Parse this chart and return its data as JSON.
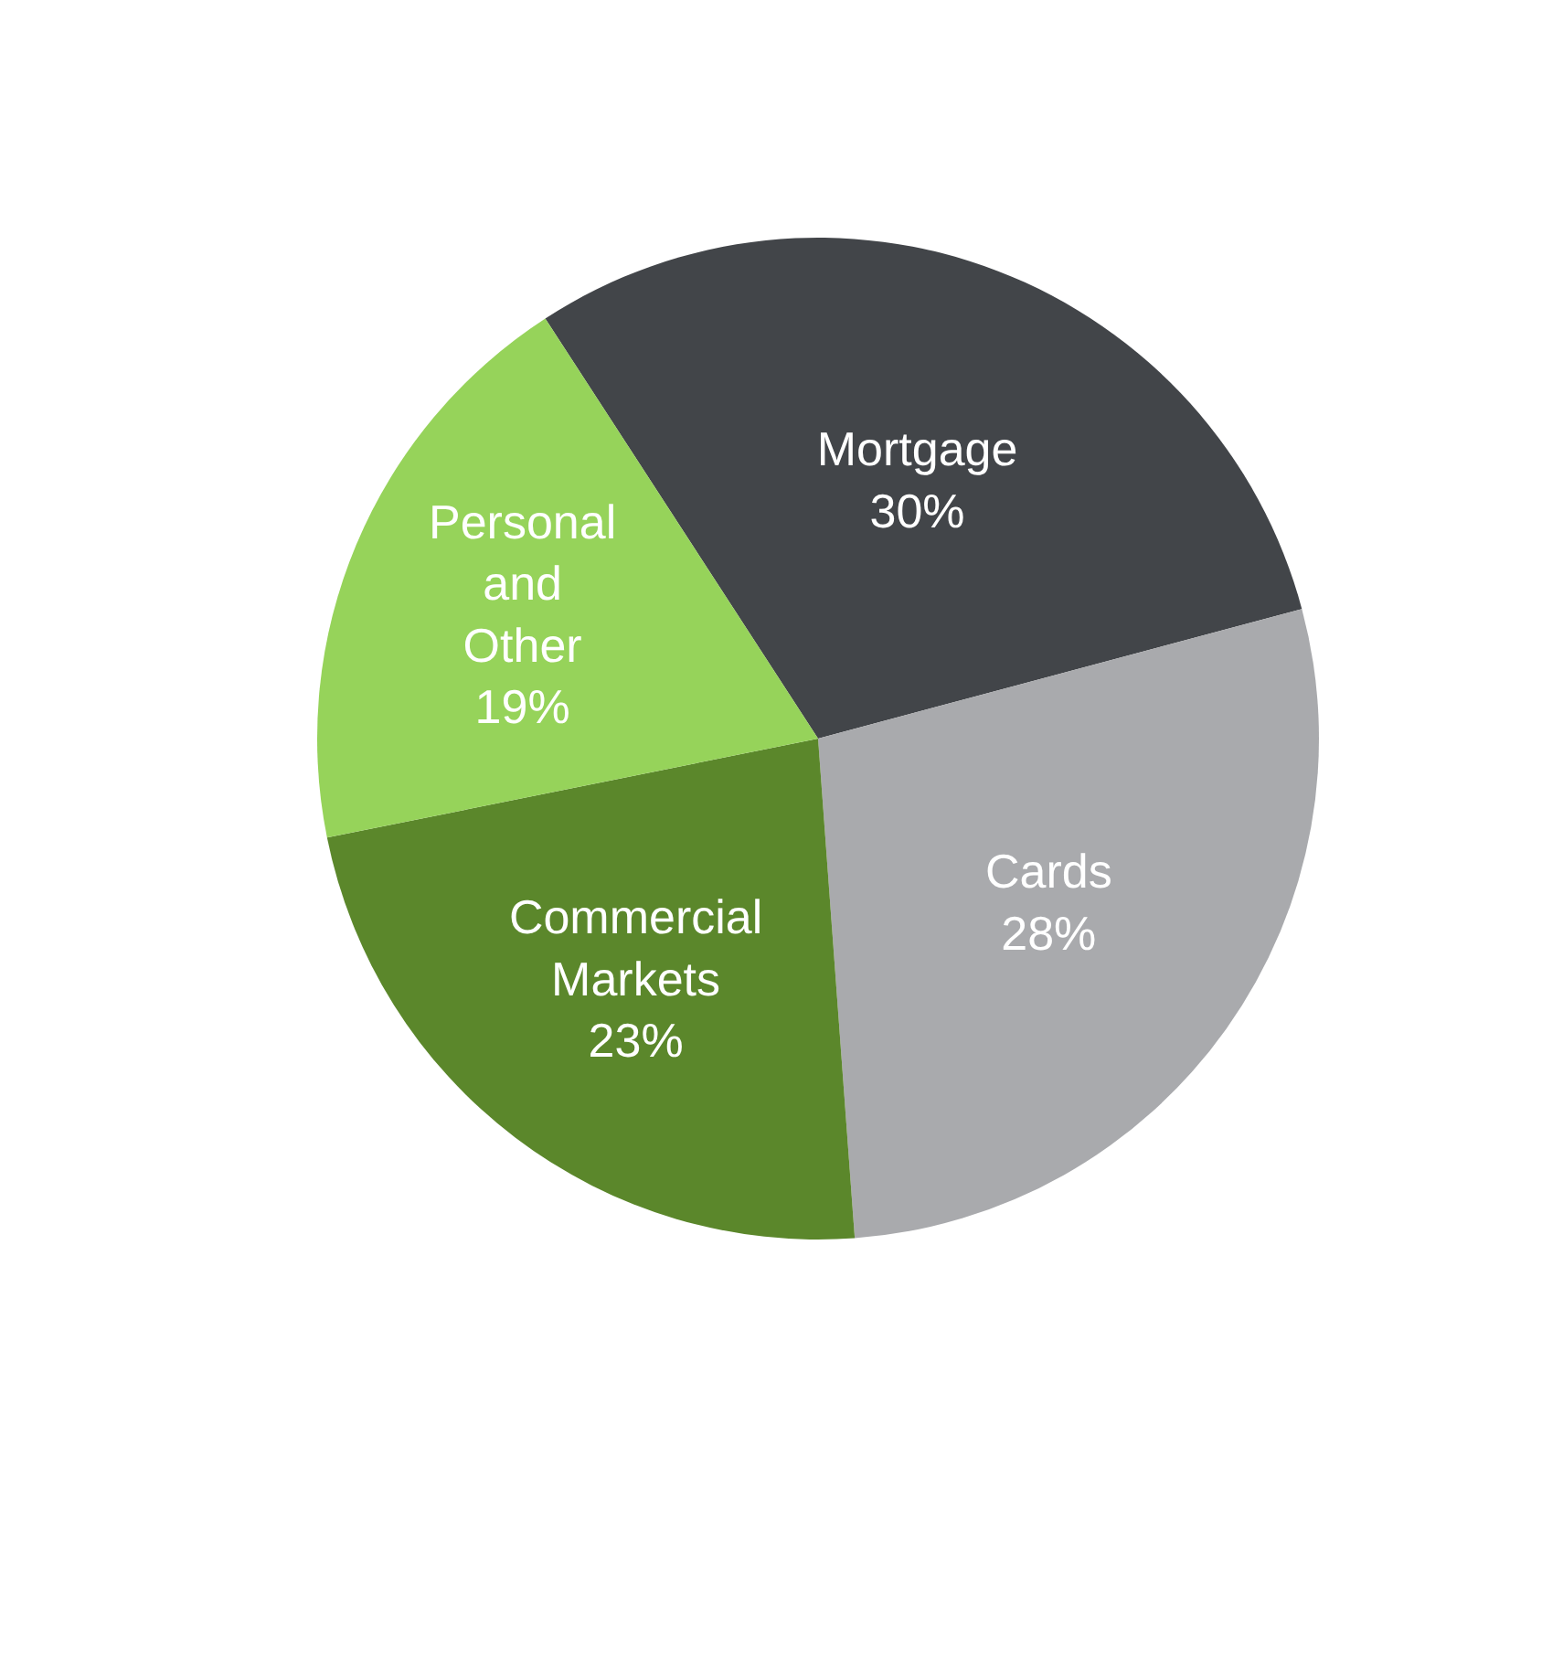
{
  "chart_data": {
    "type": "pie",
    "categories": [
      "Mortgage",
      "Cards",
      "Commercial Markets",
      "Personal and Other"
    ],
    "values": [
      30,
      28,
      23,
      19
    ],
    "colors": [
      "#424549",
      "#a9aaad",
      "#5b872b",
      "#96d35a"
    ],
    "value_labels": [
      "30%",
      "28%",
      "23%",
      "19%"
    ],
    "legend": false
  }
}
